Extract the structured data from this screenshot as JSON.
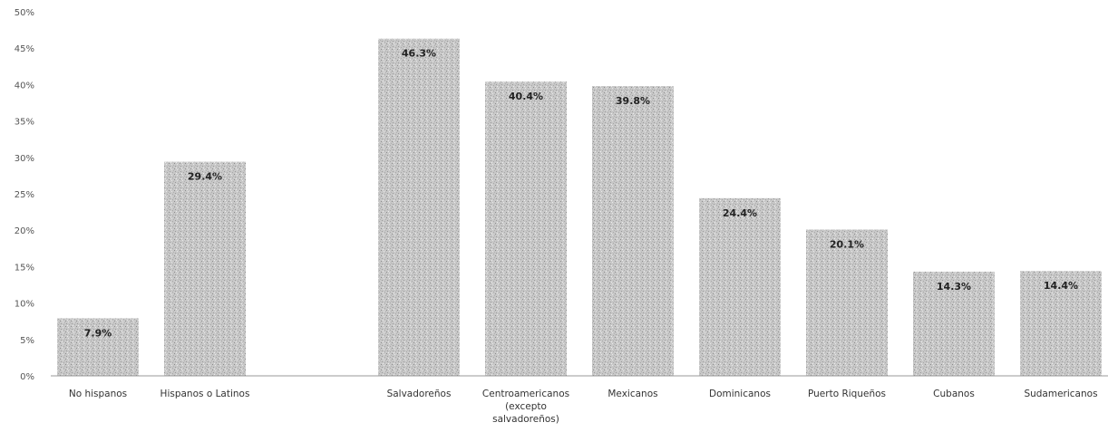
{
  "chart_data": {
    "type": "bar",
    "categories": [
      "No hispanos",
      "Hispanos o Latinos",
      "",
      "Salvadoreños",
      "Centroamericanos (excepto salvadoreños)",
      "Mexicanos",
      "Dominicanos",
      "Puerto Riqueños",
      "Cubanos",
      "Sudamericanos"
    ],
    "category_lines": [
      [
        "No hispanos"
      ],
      [
        "Hispanos o Latinos"
      ],
      [],
      [
        "Salvadoreños"
      ],
      [
        "Centroamericanos",
        "(excepto",
        "salvadoreños)"
      ],
      [
        "Mexicanos"
      ],
      [
        "Dominicanos"
      ],
      [
        "Puerto Riqueños"
      ],
      [
        "Cubanos"
      ],
      [
        "Sudamericanos"
      ]
    ],
    "values": [
      7.9,
      29.4,
      null,
      46.3,
      40.4,
      39.8,
      24.4,
      20.1,
      14.3,
      14.4
    ],
    "data_labels": [
      "7.9%",
      "29.4%",
      "",
      "46.3%",
      "40.4%",
      "39.8%",
      "24.4%",
      "20.1%",
      "14.3%",
      "14.4%"
    ],
    "ylim": [
      0,
      50
    ],
    "yticks": [
      0,
      5,
      10,
      15,
      20,
      25,
      30,
      35,
      40,
      45,
      50
    ],
    "ytick_labels": [
      "0%",
      "5%",
      "10%",
      "15%",
      "20%",
      "25%",
      "30%",
      "35%",
      "40%",
      "45%",
      "50%"
    ],
    "title": "",
    "xlabel": "",
    "ylabel": "",
    "grid": false,
    "legend": "none",
    "bar_color": "#c4c4c4",
    "bar_texture": "speckled-gray"
  }
}
